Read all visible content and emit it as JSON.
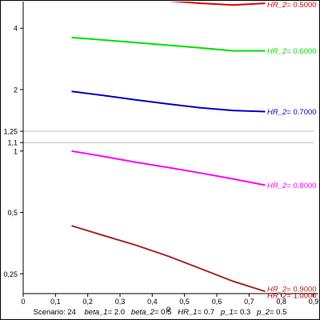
{
  "chart_data": {
    "type": "line",
    "xlabel": "ρ",
    "ylabel": "",
    "xlim": [
      0,
      0.9
    ],
    "ylim": [
      0.2,
      5.4
    ],
    "yscale": "log",
    "grid": false,
    "x_ticks": [
      {
        "v": 0,
        "label": "0"
      },
      {
        "v": 0.1,
        "label": "0,1"
      },
      {
        "v": 0.2,
        "label": "0,2"
      },
      {
        "v": 0.3,
        "label": "0,3"
      },
      {
        "v": 0.4,
        "label": "0,4"
      },
      {
        "v": 0.5,
        "label": "0,5"
      },
      {
        "v": 0.6,
        "label": "0,6"
      },
      {
        "v": 0.7,
        "label": "0,7"
      },
      {
        "v": 0.8,
        "label": "0,8"
      },
      {
        "v": 0.9,
        "label": "0,9"
      }
    ],
    "y_ticks": [
      {
        "v": 4,
        "label": "4"
      },
      {
        "v": 2,
        "label": "2"
      },
      {
        "v": 1.25,
        "label": "1,25"
      },
      {
        "v": 1.1,
        "label": "1,1"
      },
      {
        "v": 1,
        "label": "1"
      },
      {
        "v": 0.5,
        "label": "0,5"
      },
      {
        "v": 0.25,
        "label": "0,25"
      }
    ],
    "reference_lines": [
      1.25,
      1.1
    ],
    "series": [
      {
        "label_prefix": "HR_2",
        "label_value": "= 0.5000",
        "color": "#e00000",
        "x": [
          0.15,
          0.25,
          0.35,
          0.45,
          0.55,
          0.65,
          0.75
        ],
        "y": [
          5.9,
          5.75,
          5.6,
          5.45,
          5.3,
          5.2,
          5.3
        ]
      },
      {
        "label_prefix": "HR_2",
        "label_value": "= 0.6000",
        "color": "#00e000",
        "x": [
          0.15,
          0.25,
          0.35,
          0.45,
          0.55,
          0.65,
          0.75
        ],
        "y": [
          3.6,
          3.5,
          3.4,
          3.3,
          3.2,
          3.1,
          3.1
        ]
      },
      {
        "label_prefix": "HR_2",
        "label_value": "= 0.7000",
        "color": "#0000c8",
        "x": [
          0.15,
          0.25,
          0.35,
          0.45,
          0.55,
          0.65,
          0.75
        ],
        "y": [
          1.96,
          1.87,
          1.78,
          1.7,
          1.63,
          1.58,
          1.56
        ]
      },
      {
        "label_prefix": "HR_2",
        "label_value": "= 0.8000",
        "color": "#ff00ff",
        "x": [
          0.15,
          0.25,
          0.35,
          0.45,
          0.55,
          0.65,
          0.75
        ],
        "y": [
          1.0,
          0.94,
          0.88,
          0.83,
          0.78,
          0.73,
          0.68
        ]
      },
      {
        "label_prefix": "HR_2",
        "label_value": "= 0.9000",
        "color": "#a52a2a",
        "x": [
          0.15,
          0.25,
          0.35,
          0.45,
          0.55,
          0.65,
          0.75
        ],
        "y": [
          0.43,
          0.385,
          0.345,
          0.305,
          0.265,
          0.23,
          0.205
        ]
      },
      {
        "label_prefix": "HR_2",
        "label_value": "= 1.0000",
        "color": "#c00000",
        "x": [],
        "y": []
      }
    ]
  },
  "caption": {
    "scenario": "Scenario: 24",
    "params": [
      {
        "name": "beta_1",
        "value": "= 2.0"
      },
      {
        "name": "beta_2",
        "value": "= 0.5"
      },
      {
        "name": "HR_1",
        "value": "= 0.7"
      },
      {
        "name": "p_1",
        "value": "= 0.3"
      },
      {
        "name": "p_2",
        "value": "= 0.5"
      }
    ]
  }
}
